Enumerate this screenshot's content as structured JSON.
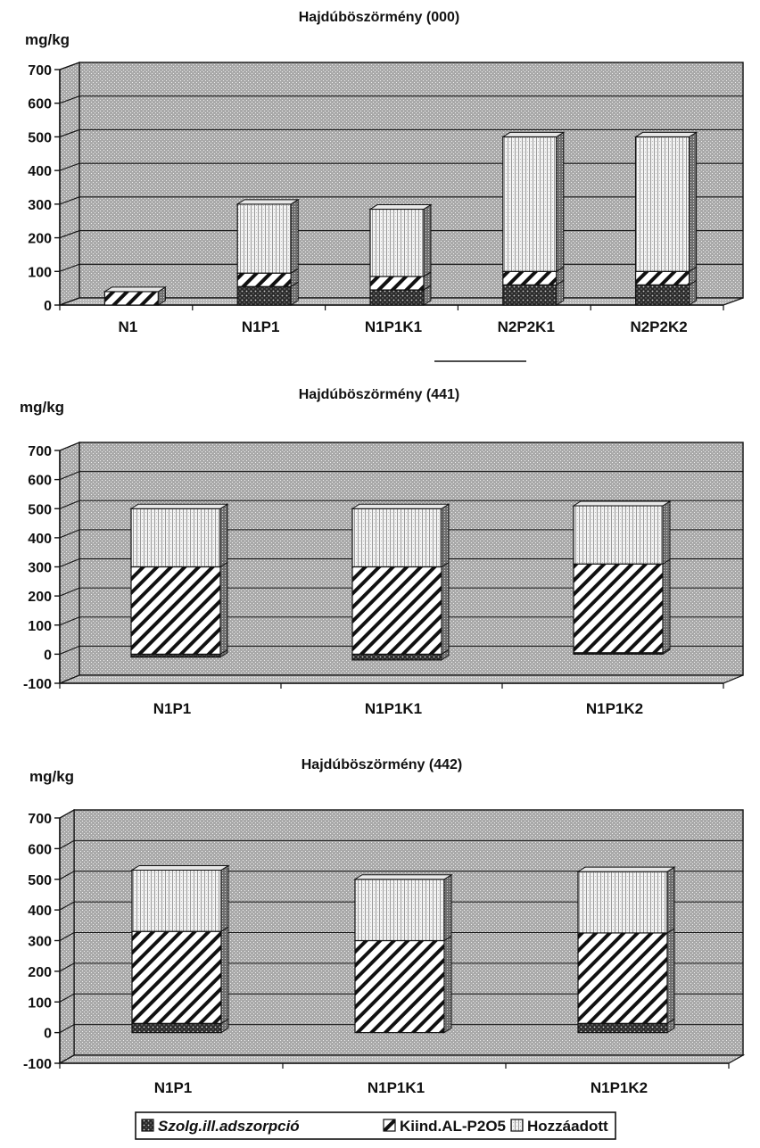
{
  "legend": {
    "items": [
      {
        "label": "Szolg.ill.adszorpció",
        "pattern": "dots-dark",
        "italic": true
      },
      {
        "label": "Kiind.AL-P2O5",
        "pattern": "diagonal",
        "italic": false
      },
      {
        "label": "Hozzáadott",
        "pattern": "light",
        "italic": false
      }
    ]
  },
  "chart_data": [
    {
      "type": "bar",
      "stacked": true,
      "title": "Hajdúböszörmény (000)",
      "ylabel": "mg/kg",
      "ylim": [
        0,
        700
      ],
      "yticks": [
        0,
        100,
        200,
        300,
        400,
        500,
        600,
        700
      ],
      "categories": [
        "N1",
        "N1P1",
        "N1P1K1",
        "N2P2K1",
        "N2P2K2"
      ],
      "series": [
        {
          "name": "Szolg.ill.adszorpció",
          "values": [
            0,
            55,
            45,
            60,
            60
          ]
        },
        {
          "name": "Kiind.AL-P2O5",
          "values": [
            40,
            40,
            40,
            40,
            40
          ]
        },
        {
          "name": "Hozzáadott",
          "values": [
            0,
            205,
            200,
            400,
            400
          ]
        }
      ],
      "grid": true
    },
    {
      "type": "bar",
      "stacked": true,
      "title": "Hajdúböszörmény (441)",
      "ylabel": "mg/kg",
      "ylim": [
        -100,
        700
      ],
      "yticks": [
        -100,
        0,
        100,
        200,
        300,
        400,
        500,
        600,
        700
      ],
      "categories": [
        "N1P1",
        "N1P1K1",
        "N1P1K2"
      ],
      "series": [
        {
          "name": "Szolg.ill.adszorpció",
          "values": [
            -10,
            -20,
            5
          ]
        },
        {
          "name": "Kiind.AL-P2O5",
          "values": [
            300,
            300,
            305
          ]
        },
        {
          "name": "Hozzáadott",
          "values": [
            200,
            200,
            200
          ]
        }
      ],
      "grid": true
    },
    {
      "type": "bar",
      "stacked": true,
      "title": "Hajdúböszörmény (442)",
      "ylabel": "mg/kg",
      "ylim": [
        -100,
        700
      ],
      "yticks": [
        -100,
        0,
        100,
        200,
        300,
        400,
        500,
        600,
        700
      ],
      "categories": [
        "N1P1",
        "N1P1K1",
        "N1P1K2"
      ],
      "series": [
        {
          "name": "Szolg.ill.adszorpció",
          "values": [
            30,
            0,
            30
          ]
        },
        {
          "name": "Kiind.AL-P2O5",
          "values": [
            300,
            300,
            295
          ]
        },
        {
          "name": "Hozzáadott",
          "values": [
            200,
            200,
            200
          ]
        }
      ],
      "grid": true
    }
  ]
}
